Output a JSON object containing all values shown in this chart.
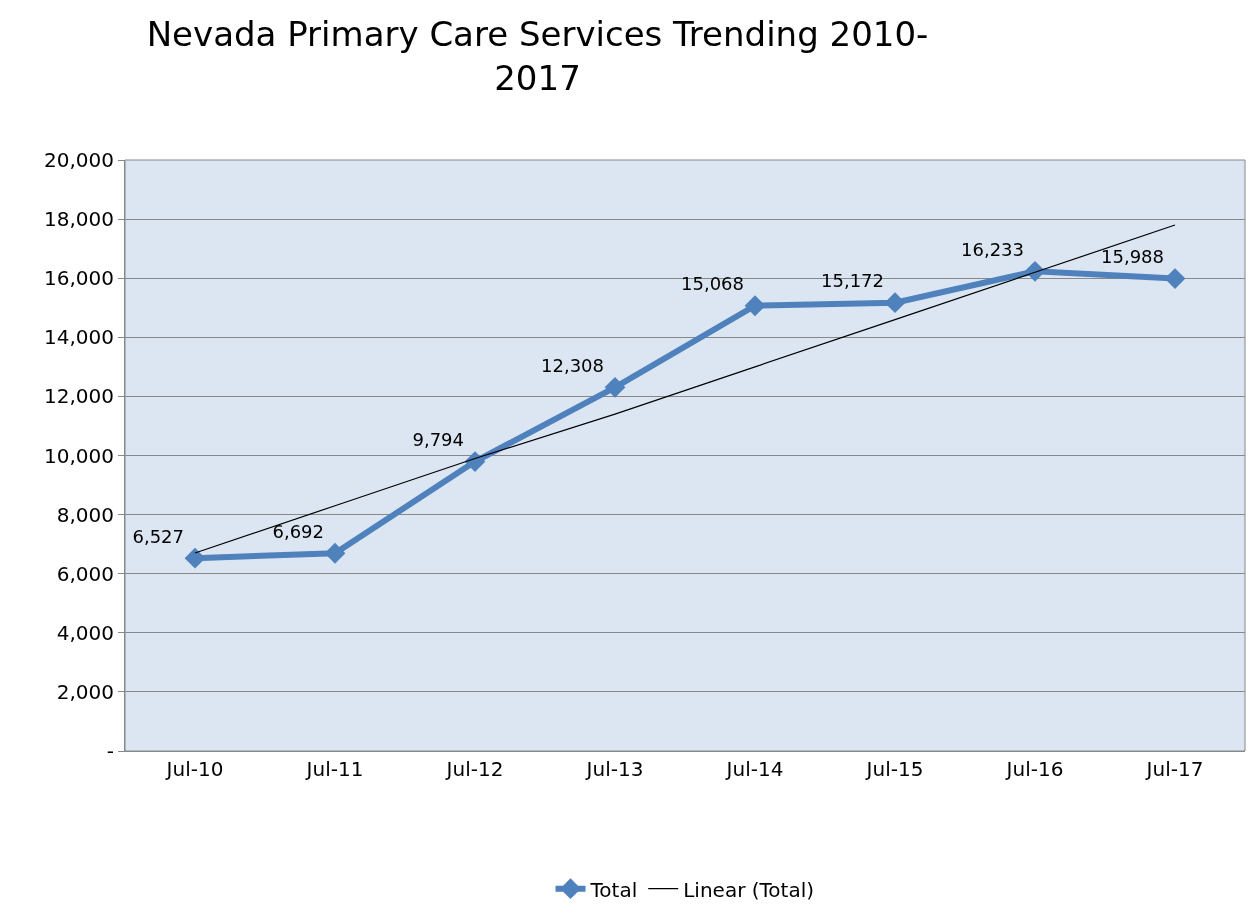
{
  "chart_data": {
    "type": "line",
    "title": "Nevada Primary Care Services Trending 2010-\n2017",
    "categories": [
      "Jul-10",
      "Jul-11",
      "Jul-12",
      "Jul-13",
      "Jul-14",
      "Jul-15",
      "Jul-16",
      "Jul-17"
    ],
    "series": [
      {
        "name": "Total",
        "color": "#4f81bd",
        "marker": "diamond",
        "values": [
          6527,
          6692,
          9794,
          12308,
          15068,
          15172,
          16233,
          15988
        ],
        "value_labels": [
          "6,527",
          "6,692",
          "9,794",
          "12,308",
          "15,068",
          "15,172",
          "16,233",
          "15,988"
        ]
      },
      {
        "name": "Linear (Total)",
        "color": "#000000",
        "marker": "none",
        "values": [
          6700,
          8300,
          9900,
          11400,
          13000,
          14600,
          16200,
          17800
        ]
      }
    ],
    "ylim": [
      0,
      20000
    ],
    "yticks": [
      {
        "value": 0,
        "label": "-"
      },
      {
        "value": 2000,
        "label": "2,000"
      },
      {
        "value": 4000,
        "label": "4,000"
      },
      {
        "value": 6000,
        "label": "6,000"
      },
      {
        "value": 8000,
        "label": "8,000"
      },
      {
        "value": 10000,
        "label": "10,000"
      },
      {
        "value": 12000,
        "label": "12,000"
      },
      {
        "value": 14000,
        "label": "14,000"
      },
      {
        "value": 16000,
        "label": "16,000"
      },
      {
        "value": 18000,
        "label": "18,000"
      },
      {
        "value": 20000,
        "label": "20,000"
      }
    ],
    "grid": "y",
    "legend": "bottom"
  }
}
